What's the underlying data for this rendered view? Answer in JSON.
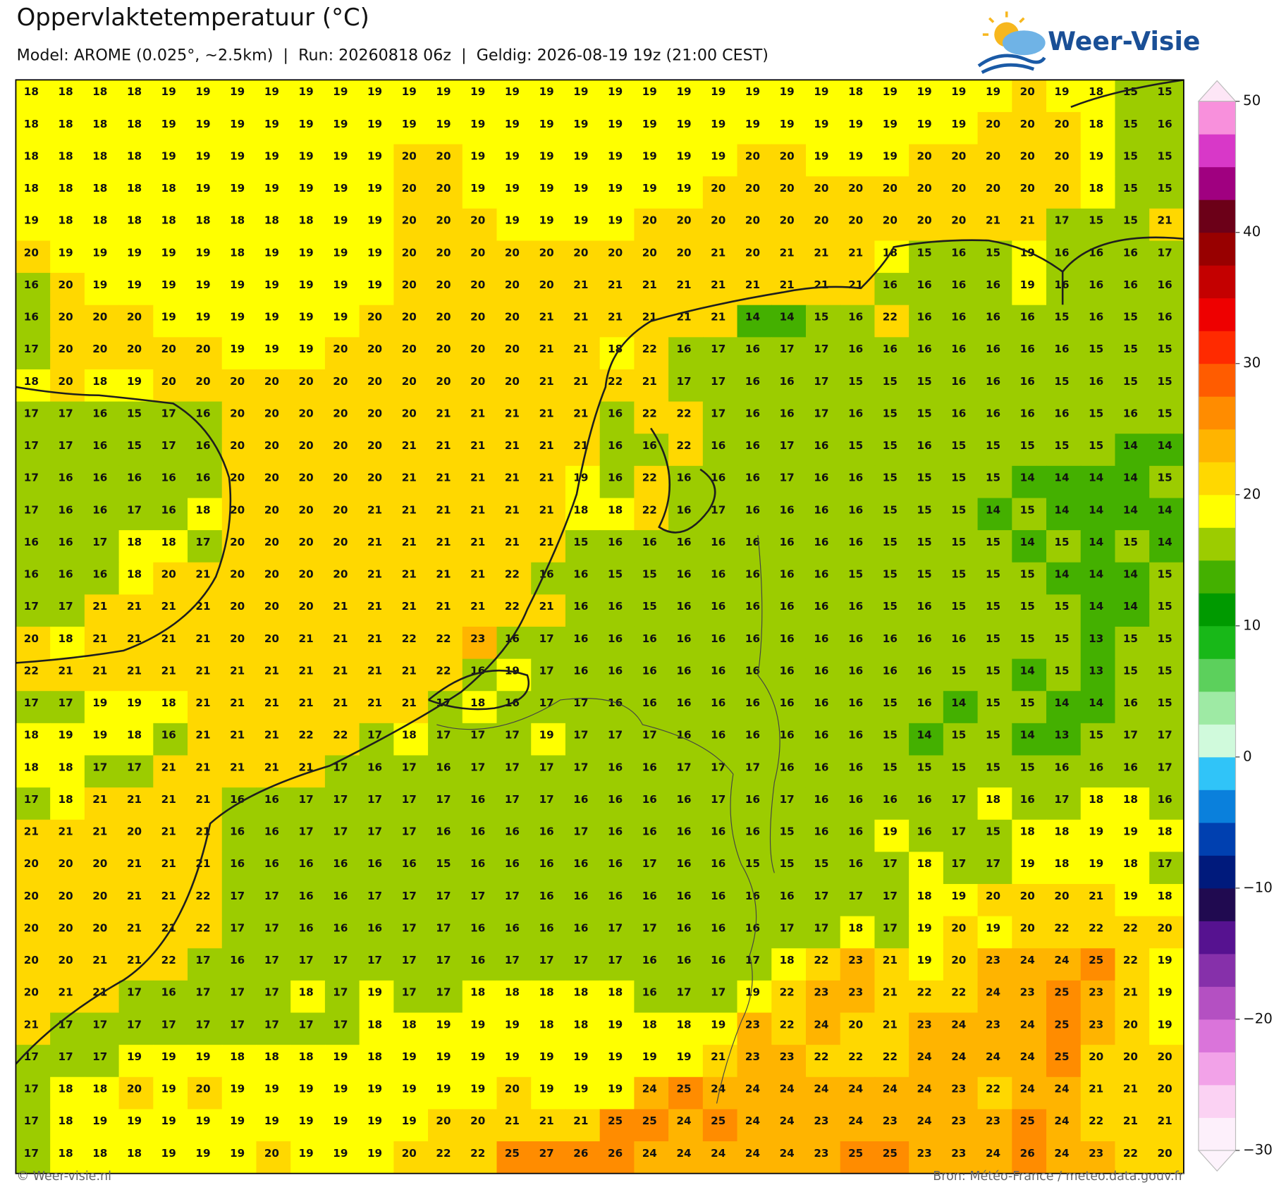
{
  "header": {
    "title": "Oppervlaktetemperatuur (°C)",
    "subtitle": "Model: AROME (0.025°, ~2.5km)  |  Run: 20260818 06z  |  Geldig: 2026-08-19 19z (21:00 CEST)"
  },
  "logo": "Weer-Visie",
  "grid": {
    "values": [
      [
        18,
        18,
        18,
        18,
        19,
        19,
        19,
        19,
        19,
        19,
        19,
        19,
        19,
        19,
        19,
        19,
        19,
        19,
        19,
        19,
        19,
        19,
        19,
        19,
        18,
        19,
        19,
        19,
        19,
        20,
        19,
        18,
        15,
        15
      ],
      [
        18,
        18,
        18,
        18,
        19,
        19,
        19,
        19,
        19,
        19,
        19,
        19,
        19,
        19,
        19,
        19,
        19,
        19,
        19,
        19,
        19,
        19,
        19,
        19,
        19,
        19,
        19,
        19,
        20,
        20,
        20,
        18,
        15,
        16
      ],
      [
        18,
        18,
        18,
        18,
        19,
        19,
        19,
        19,
        19,
        19,
        19,
        20,
        20,
        19,
        19,
        19,
        19,
        19,
        19,
        19,
        19,
        20,
        20,
        19,
        19,
        19,
        20,
        20,
        20,
        20,
        20,
        19,
        15,
        15
      ],
      [
        18,
        18,
        18,
        18,
        18,
        19,
        19,
        19,
        19,
        19,
        19,
        20,
        20,
        19,
        19,
        19,
        19,
        19,
        19,
        19,
        20,
        20,
        20,
        20,
        20,
        20,
        20,
        20,
        20,
        20,
        20,
        18,
        15,
        15
      ],
      [
        19,
        18,
        18,
        18,
        18,
        18,
        18,
        18,
        18,
        19,
        19,
        20,
        20,
        20,
        19,
        19,
        19,
        19,
        20,
        20,
        20,
        20,
        20,
        20,
        20,
        20,
        20,
        20,
        21,
        21,
        17,
        15,
        15,
        21
      ],
      [
        20,
        19,
        19,
        19,
        19,
        19,
        18,
        19,
        19,
        19,
        19,
        20,
        20,
        20,
        20,
        20,
        20,
        20,
        20,
        20,
        21,
        20,
        21,
        21,
        21,
        18,
        15,
        16,
        15,
        19,
        16,
        16,
        16,
        17
      ],
      [
        16,
        20,
        19,
        19,
        19,
        19,
        19,
        19,
        19,
        19,
        19,
        20,
        20,
        20,
        20,
        20,
        21,
        21,
        21,
        21,
        21,
        21,
        21,
        21,
        21,
        16,
        16,
        16,
        16,
        19,
        16,
        16,
        16,
        16
      ],
      [
        16,
        20,
        20,
        20,
        19,
        19,
        19,
        19,
        19,
        19,
        20,
        20,
        20,
        20,
        20,
        21,
        21,
        21,
        21,
        21,
        21,
        14,
        14,
        15,
        16,
        22,
        16,
        16,
        16,
        16,
        15,
        16,
        15,
        16
      ],
      [
        17,
        20,
        20,
        20,
        20,
        20,
        19,
        19,
        19,
        20,
        20,
        20,
        20,
        20,
        20,
        21,
        21,
        18,
        22,
        16,
        17,
        16,
        17,
        17,
        16,
        16,
        16,
        16,
        16,
        16,
        16,
        15,
        15,
        15
      ],
      [
        18,
        20,
        18,
        19,
        20,
        20,
        20,
        20,
        20,
        20,
        20,
        20,
        20,
        20,
        20,
        21,
        21,
        22,
        21,
        17,
        17,
        16,
        16,
        17,
        15,
        15,
        15,
        16,
        16,
        16,
        15,
        16,
        15,
        15
      ],
      [
        17,
        17,
        16,
        15,
        17,
        16,
        20,
        20,
        20,
        20,
        20,
        20,
        21,
        21,
        21,
        21,
        21,
        16,
        22,
        22,
        17,
        16,
        16,
        17,
        16,
        15,
        15,
        16,
        16,
        16,
        16,
        15,
        16,
        15
      ],
      [
        17,
        17,
        16,
        15,
        17,
        16,
        20,
        20,
        20,
        20,
        20,
        21,
        21,
        21,
        21,
        21,
        21,
        16,
        16,
        22,
        16,
        16,
        17,
        16,
        15,
        15,
        16,
        15,
        15,
        15,
        15,
        15,
        14,
        14
      ],
      [
        17,
        16,
        16,
        16,
        16,
        16,
        20,
        20,
        20,
        20,
        20,
        21,
        21,
        21,
        21,
        21,
        19,
        16,
        22,
        16,
        16,
        16,
        17,
        16,
        16,
        15,
        15,
        15,
        15,
        14,
        14,
        14,
        14,
        15
      ],
      [
        17,
        16,
        16,
        17,
        16,
        18,
        20,
        20,
        20,
        20,
        21,
        21,
        21,
        21,
        21,
        21,
        18,
        18,
        22,
        16,
        17,
        16,
        16,
        16,
        16,
        15,
        15,
        15,
        14,
        15,
        14,
        14,
        14,
        14
      ],
      [
        16,
        16,
        17,
        18,
        18,
        17,
        20,
        20,
        20,
        20,
        21,
        21,
        21,
        21,
        21,
        21,
        15,
        16,
        16,
        16,
        16,
        16,
        16,
        16,
        16,
        15,
        15,
        15,
        15,
        14,
        15,
        14,
        15,
        14
      ],
      [
        16,
        16,
        16,
        18,
        20,
        21,
        20,
        20,
        20,
        20,
        21,
        21,
        21,
        21,
        22,
        16,
        16,
        15,
        15,
        16,
        16,
        16,
        16,
        16,
        15,
        15,
        15,
        15,
        15,
        15,
        14,
        14,
        14,
        15
      ],
      [
        17,
        17,
        21,
        21,
        21,
        21,
        20,
        20,
        20,
        21,
        21,
        21,
        21,
        21,
        22,
        21,
        16,
        16,
        15,
        16,
        16,
        16,
        16,
        16,
        16,
        15,
        16,
        15,
        15,
        15,
        15,
        14,
        14,
        15
      ],
      [
        20,
        18,
        21,
        21,
        21,
        21,
        20,
        20,
        21,
        21,
        21,
        22,
        22,
        23,
        16,
        17,
        16,
        16,
        16,
        16,
        16,
        16,
        16,
        16,
        16,
        16,
        16,
        16,
        15,
        15,
        15,
        13,
        15,
        15
      ],
      [
        22,
        21,
        21,
        21,
        21,
        21,
        21,
        21,
        21,
        21,
        21,
        21,
        22,
        16,
        19,
        17,
        16,
        16,
        16,
        16,
        16,
        16,
        16,
        16,
        16,
        16,
        16,
        15,
        15,
        14,
        15,
        13,
        15,
        15
      ],
      [
        17,
        17,
        19,
        19,
        18,
        21,
        21,
        21,
        21,
        21,
        21,
        21,
        17,
        18,
        16,
        17,
        17,
        16,
        16,
        16,
        16,
        16,
        16,
        16,
        16,
        15,
        16,
        14,
        15,
        15,
        14,
        14,
        16,
        15
      ],
      [
        18,
        19,
        19,
        18,
        16,
        21,
        21,
        21,
        22,
        22,
        17,
        18,
        17,
        17,
        17,
        19,
        17,
        17,
        17,
        16,
        16,
        16,
        16,
        16,
        16,
        15,
        14,
        15,
        15,
        14,
        13,
        15,
        17,
        17
      ],
      [
        18,
        18,
        17,
        17,
        21,
        21,
        21,
        21,
        21,
        17,
        16,
        17,
        16,
        17,
        17,
        17,
        17,
        16,
        16,
        17,
        17,
        17,
        16,
        16,
        16,
        15,
        15,
        15,
        15,
        15,
        16,
        16,
        16,
        17
      ],
      [
        17,
        18,
        21,
        21,
        21,
        21,
        16,
        16,
        17,
        17,
        17,
        17,
        17,
        16,
        17,
        17,
        16,
        16,
        16,
        16,
        17,
        16,
        17,
        16,
        16,
        16,
        16,
        17,
        18,
        16,
        17,
        18,
        18,
        16
      ],
      [
        21,
        21,
        21,
        20,
        21,
        21,
        16,
        16,
        17,
        17,
        17,
        17,
        16,
        16,
        16,
        16,
        17,
        16,
        16,
        16,
        16,
        16,
        15,
        16,
        16,
        19,
        16,
        17,
        15,
        18,
        18,
        19,
        19,
        18
      ],
      [
        20,
        20,
        20,
        21,
        21,
        21,
        16,
        16,
        16,
        16,
        16,
        16,
        15,
        16,
        16,
        16,
        16,
        16,
        17,
        16,
        16,
        15,
        15,
        15,
        16,
        17,
        18,
        17,
        17,
        19,
        18,
        19,
        18,
        17
      ],
      [
        20,
        20,
        20,
        21,
        21,
        22,
        17,
        17,
        16,
        16,
        17,
        17,
        17,
        17,
        17,
        16,
        16,
        16,
        16,
        16,
        16,
        16,
        16,
        17,
        17,
        17,
        18,
        19,
        20,
        20,
        20,
        21,
        19,
        18
      ],
      [
        20,
        20,
        20,
        21,
        21,
        22,
        17,
        17,
        16,
        16,
        16,
        17,
        17,
        16,
        16,
        16,
        16,
        17,
        17,
        16,
        16,
        16,
        17,
        17,
        18,
        17,
        19,
        20,
        19,
        20,
        22,
        22,
        22,
        20
      ],
      [
        20,
        20,
        21,
        21,
        22,
        17,
        16,
        17,
        17,
        17,
        17,
        17,
        17,
        16,
        17,
        17,
        17,
        17,
        16,
        16,
        16,
        17,
        18,
        22,
        23,
        21,
        19,
        20,
        23,
        24,
        24,
        25,
        22,
        19
      ],
      [
        20,
        21,
        21,
        17,
        16,
        17,
        17,
        17,
        18,
        17,
        19,
        17,
        17,
        18,
        18,
        18,
        18,
        18,
        16,
        17,
        17,
        19,
        22,
        23,
        23,
        21,
        22,
        22,
        24,
        23,
        25,
        23,
        21,
        19
      ],
      [
        21,
        17,
        17,
        17,
        17,
        17,
        17,
        17,
        17,
        17,
        18,
        18,
        19,
        19,
        19,
        18,
        18,
        19,
        18,
        18,
        19,
        23,
        22,
        24,
        20,
        21,
        23,
        24,
        23,
        24,
        25,
        23,
        20,
        19
      ],
      [
        17,
        17,
        17,
        19,
        19,
        19,
        18,
        18,
        18,
        19,
        18,
        19,
        19,
        19,
        19,
        19,
        19,
        19,
        19,
        19,
        21,
        23,
        23,
        22,
        22,
        22,
        24,
        24,
        24,
        24,
        25,
        20,
        20,
        20
      ],
      [
        17,
        18,
        18,
        20,
        19,
        20,
        19,
        19,
        19,
        19,
        19,
        19,
        19,
        19,
        20,
        19,
        19,
        19,
        24,
        25,
        24,
        24,
        24,
        24,
        24,
        24,
        24,
        23,
        22,
        24,
        24,
        21,
        21,
        20
      ],
      [
        17,
        18,
        19,
        19,
        19,
        19,
        19,
        19,
        19,
        19,
        19,
        19,
        20,
        20,
        21,
        21,
        21,
        25,
        25,
        24,
        25,
        24,
        24,
        23,
        24,
        23,
        24,
        23,
        23,
        25,
        24,
        22,
        21,
        21
      ],
      [
        17,
        18,
        18,
        18,
        19,
        19,
        19,
        20,
        19,
        19,
        19,
        20,
        22,
        22,
        25,
        27,
        26,
        26,
        24,
        24,
        24,
        24,
        24,
        23,
        25,
        25,
        23,
        23,
        24,
        26,
        24,
        23,
        22,
        20
      ]
    ]
  },
  "colorbar": {
    "lim": [
      -30,
      50
    ],
    "ticks": [
      {
        "value": -30,
        "label": "−30"
      },
      {
        "value": -20,
        "label": "−20"
      },
      {
        "value": -10,
        "label": "−10"
      },
      0,
      10,
      20,
      30,
      40,
      50
    ],
    "colors": [
      "#fdf0fb",
      "#fbd2f3",
      "#f2a2e8",
      "#da74da",
      "#b450c2",
      "#8630aa",
      "#561290",
      "#200a50",
      "#001a7c",
      "#0040b0",
      "#0a80dc",
      "#30c4f8",
      "#d0fadc",
      "#9eeaa4",
      "#5cd05c",
      "#18b818",
      "#009a00",
      "#44b000",
      "#9ccc00",
      "#ffff00",
      "#ffd800",
      "#ffb400",
      "#ff8c00",
      "#ff5c00",
      "#ff2a00",
      "#ee0000",
      "#c40000",
      "#980000",
      "#6c0018",
      "#a00080",
      "#d838c8",
      "#f890dc"
    ]
  },
  "footer": {
    "left": "© Weer-visie.nl",
    "right": "Bron: Météo-France / meteo.data.gouv.fr"
  }
}
